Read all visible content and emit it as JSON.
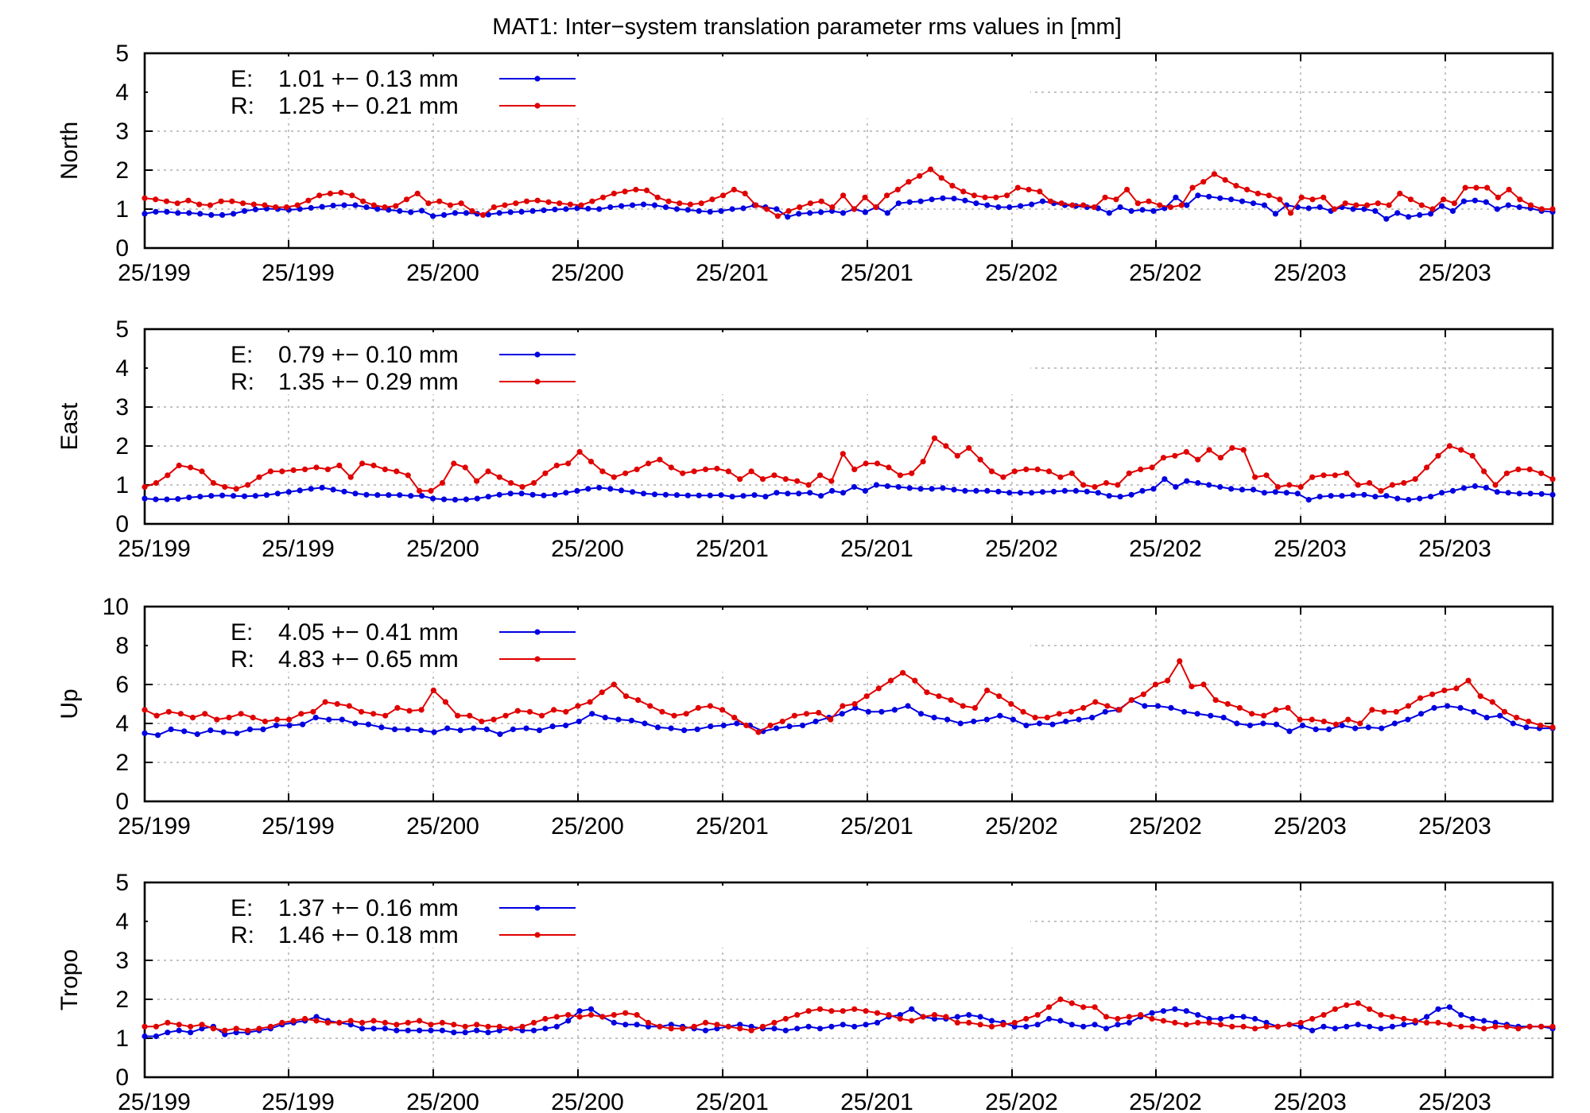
{
  "title": "MAT1: Inter−system translation parameter rms values in [mm]",
  "colors": {
    "E": "#0000e0",
    "R": "#e00000",
    "grid": "#a0a0a0",
    "frame": "#000000"
  },
  "x_tick_labels": [
    "25/199",
    "25/199",
    "25/200",
    "25/200",
    "25/201",
    "25/201",
    "25/202",
    "25/202",
    "25/203",
    "25/203"
  ],
  "chart_data": [
    {
      "type": "line",
      "ylabel": "North",
      "ylim": [
        0,
        5
      ],
      "yticks": [
        "0",
        "1",
        "2",
        "3",
        "4",
        "5"
      ],
      "grid": true,
      "legend_position": "top-left",
      "series": [
        {
          "name": "E",
          "legend": "1.01 +− 0.13 mm",
          "values": [
            0.88,
            0.93,
            0.93,
            0.9,
            0.9,
            0.88,
            0.85,
            0.85,
            0.88,
            0.95,
            0.99,
            1.01,
            1.0,
            0.98,
            1.0,
            1.03,
            1.06,
            1.09,
            1.1,
            1.1,
            1.05,
            1.0,
            0.98,
            0.95,
            0.92,
            0.96,
            0.82,
            0.85,
            0.9,
            0.9,
            0.88,
            0.86,
            0.9,
            0.92,
            0.93,
            0.95,
            0.97,
            0.99,
            1.0,
            1.02,
            1.01,
            1.0,
            1.05,
            1.08,
            1.1,
            1.12,
            1.1,
            1.05,
            1.0,
            0.98,
            0.95,
            0.93,
            0.95,
            1.0,
            1.02,
            1.1,
            1.05,
            1.0,
            0.8,
            0.88,
            0.9,
            0.92,
            0.95,
            0.9,
            1.0,
            0.92,
            1.05,
            0.9,
            1.15,
            1.18,
            1.2,
            1.25,
            1.28,
            1.27,
            1.22,
            1.15,
            1.1,
            1.05,
            1.05,
            1.08,
            1.12,
            1.2,
            1.15,
            1.1,
            1.08,
            1.05,
            1.02,
            0.9,
            1.05,
            0.95,
            0.98,
            0.95,
            1.02,
            1.3,
            1.1,
            1.35,
            1.32,
            1.28,
            1.25,
            1.2,
            1.15,
            1.1,
            0.88,
            1.1,
            1.05,
            1.02,
            1.05,
            0.95,
            1.05,
            1.0,
            1.0,
            0.95,
            0.75,
            0.9,
            0.8,
            0.85,
            0.88,
            1.08,
            0.95,
            1.2,
            1.22,
            1.18,
            1.0,
            1.1,
            1.05,
            1.02,
            0.95,
            0.93
          ]
        },
        {
          "name": "R",
          "legend": "1.25 +− 0.21 mm",
          "values": [
            1.28,
            1.25,
            1.2,
            1.15,
            1.22,
            1.12,
            1.1,
            1.2,
            1.2,
            1.15,
            1.12,
            1.1,
            1.05,
            1.05,
            1.1,
            1.22,
            1.35,
            1.4,
            1.42,
            1.35,
            1.2,
            1.1,
            1.05,
            1.08,
            1.25,
            1.4,
            1.15,
            1.2,
            1.1,
            1.15,
            0.95,
            0.85,
            1.05,
            1.1,
            1.15,
            1.2,
            1.22,
            1.18,
            1.15,
            1.12,
            1.1,
            1.2,
            1.3,
            1.4,
            1.45,
            1.5,
            1.48,
            1.3,
            1.2,
            1.15,
            1.12,
            1.15,
            1.25,
            1.35,
            1.5,
            1.4,
            1.1,
            1.0,
            0.82,
            0.95,
            1.05,
            1.15,
            1.2,
            1.05,
            1.35,
            1.0,
            1.3,
            1.05,
            1.35,
            1.5,
            1.7,
            1.85,
            2.02,
            1.8,
            1.6,
            1.45,
            1.35,
            1.3,
            1.3,
            1.35,
            1.55,
            1.5,
            1.45,
            1.2,
            1.15,
            1.1,
            1.1,
            1.05,
            1.3,
            1.25,
            1.5,
            1.15,
            1.2,
            1.1,
            1.05,
            1.1,
            1.55,
            1.7,
            1.9,
            1.75,
            1.6,
            1.5,
            1.4,
            1.35,
            1.25,
            0.9,
            1.3,
            1.25,
            1.3,
            1.0,
            1.15,
            1.1,
            1.1,
            1.15,
            1.1,
            1.4,
            1.25,
            1.1,
            1.0,
            1.25,
            1.15,
            1.55,
            1.55,
            1.55,
            1.3,
            1.5,
            1.25,
            1.1,
            1.0,
            1.0
          ]
        }
      ]
    },
    {
      "type": "line",
      "ylabel": "East",
      "ylim": [
        0,
        5
      ],
      "yticks": [
        "0",
        "1",
        "2",
        "3",
        "4",
        "5"
      ],
      "grid": true,
      "legend_position": "top-left",
      "series": [
        {
          "name": "E",
          "legend": "0.79 +− 0.10 mm",
          "values": [
            0.65,
            0.63,
            0.63,
            0.64,
            0.68,
            0.7,
            0.72,
            0.73,
            0.72,
            0.71,
            0.72,
            0.74,
            0.78,
            0.82,
            0.86,
            0.9,
            0.93,
            0.88,
            0.83,
            0.78,
            0.75,
            0.74,
            0.74,
            0.74,
            0.72,
            0.72,
            0.65,
            0.63,
            0.62,
            0.63,
            0.65,
            0.7,
            0.75,
            0.78,
            0.78,
            0.75,
            0.73,
            0.75,
            0.8,
            0.85,
            0.9,
            0.93,
            0.9,
            0.86,
            0.82,
            0.78,
            0.76,
            0.75,
            0.74,
            0.73,
            0.73,
            0.73,
            0.74,
            0.7,
            0.72,
            0.74,
            0.7,
            0.8,
            0.78,
            0.78,
            0.8,
            0.72,
            0.85,
            0.8,
            0.95,
            0.85,
            1.0,
            0.97,
            0.95,
            0.92,
            0.9,
            0.9,
            0.92,
            0.88,
            0.85,
            0.85,
            0.85,
            0.83,
            0.8,
            0.8,
            0.8,
            0.82,
            0.83,
            0.85,
            0.85,
            0.83,
            0.8,
            0.72,
            0.7,
            0.75,
            0.85,
            0.9,
            1.15,
            0.95,
            1.1,
            1.05,
            1.0,
            0.95,
            0.9,
            0.88,
            0.88,
            0.8,
            0.82,
            0.8,
            0.78,
            0.62,
            0.7,
            0.72,
            0.72,
            0.74,
            0.75,
            0.7,
            0.72,
            0.65,
            0.62,
            0.65,
            0.7,
            0.8,
            0.85,
            0.92,
            0.97,
            0.93,
            0.82,
            0.8,
            0.78,
            0.78,
            0.77,
            0.75
          ]
        },
        {
          "name": "R",
          "legend": "1.35 +− 0.29 mm",
          "values": [
            0.95,
            1.05,
            1.25,
            1.5,
            1.45,
            1.35,
            1.05,
            0.95,
            0.9,
            1.0,
            1.2,
            1.35,
            1.35,
            1.38,
            1.4,
            1.45,
            1.4,
            1.5,
            1.2,
            1.55,
            1.5,
            1.4,
            1.35,
            1.25,
            0.85,
            0.85,
            1.05,
            1.55,
            1.45,
            1.1,
            1.35,
            1.2,
            1.05,
            0.95,
            1.05,
            1.3,
            1.5,
            1.55,
            1.85,
            1.6,
            1.35,
            1.2,
            1.3,
            1.4,
            1.55,
            1.65,
            1.45,
            1.3,
            1.35,
            1.4,
            1.42,
            1.35,
            1.15,
            1.35,
            1.15,
            1.25,
            1.15,
            1.1,
            1.0,
            1.25,
            1.1,
            1.8,
            1.4,
            1.55,
            1.55,
            1.45,
            1.25,
            1.3,
            1.6,
            2.2,
            2.0,
            1.75,
            1.95,
            1.65,
            1.35,
            1.2,
            1.35,
            1.4,
            1.4,
            1.35,
            1.2,
            1.3,
            1.0,
            0.95,
            1.05,
            1.0,
            1.3,
            1.4,
            1.45,
            1.7,
            1.75,
            1.85,
            1.65,
            1.9,
            1.7,
            1.95,
            1.9,
            1.2,
            1.25,
            0.95,
            1.0,
            0.95,
            1.2,
            1.25,
            1.25,
            1.3,
            1.0,
            1.05,
            0.85,
            1.0,
            1.05,
            1.15,
            1.45,
            1.75,
            2.0,
            1.9,
            1.75,
            1.35,
            1.0,
            1.3,
            1.4,
            1.4,
            1.3,
            1.15
          ]
        }
      ]
    },
    {
      "type": "line",
      "ylabel": "Up",
      "ylim": [
        0,
        10
      ],
      "yticks": [
        "0",
        "2",
        "4",
        "6",
        "8",
        "10"
      ],
      "grid": true,
      "legend_position": "top-left",
      "series": [
        {
          "name": "E",
          "legend": "4.05 +− 0.41 mm",
          "values": [
            3.5,
            3.4,
            3.7,
            3.6,
            3.45,
            3.65,
            3.55,
            3.5,
            3.7,
            3.7,
            3.9,
            3.9,
            3.95,
            4.3,
            4.2,
            4.2,
            4.0,
            3.95,
            3.8,
            3.7,
            3.7,
            3.65,
            3.55,
            3.75,
            3.65,
            3.75,
            3.7,
            3.45,
            3.7,
            3.75,
            3.65,
            3.85,
            3.9,
            4.1,
            4.5,
            4.3,
            4.2,
            4.15,
            4.0,
            3.8,
            3.75,
            3.65,
            3.7,
            3.85,
            3.9,
            4.0,
            3.9,
            3.6,
            3.75,
            3.85,
            3.9,
            4.1,
            4.3,
            4.5,
            4.8,
            4.6,
            4.6,
            4.7,
            4.9,
            4.5,
            4.3,
            4.2,
            4.0,
            4.1,
            4.2,
            4.4,
            4.2,
            3.9,
            4.0,
            3.95,
            4.1,
            4.2,
            4.3,
            4.6,
            4.7,
            5.2,
            4.9,
            4.9,
            4.8,
            4.6,
            4.5,
            4.4,
            4.3,
            4.0,
            3.9,
            4.0,
            3.95,
            3.6,
            3.9,
            3.7,
            3.7,
            3.9,
            3.75,
            3.8,
            3.75,
            4.0,
            4.2,
            4.5,
            4.8,
            4.9,
            4.8,
            4.6,
            4.3,
            4.4,
            4.0,
            3.8,
            3.75,
            3.75
          ]
        },
        {
          "name": "R",
          "legend": "4.83 +− 0.65 mm",
          "values": [
            4.7,
            4.4,
            4.6,
            4.5,
            4.3,
            4.5,
            4.2,
            4.3,
            4.5,
            4.3,
            4.1,
            4.2,
            4.2,
            4.5,
            4.6,
            5.1,
            5.0,
            4.9,
            4.6,
            4.5,
            4.4,
            4.8,
            4.65,
            4.7,
            5.7,
            5.1,
            4.4,
            4.4,
            4.1,
            4.2,
            4.4,
            4.65,
            4.6,
            4.4,
            4.7,
            4.6,
            4.9,
            5.1,
            5.6,
            6.0,
            5.4,
            5.2,
            4.9,
            4.6,
            4.4,
            4.5,
            4.8,
            4.9,
            4.7,
            4.3,
            3.9,
            3.55,
            3.9,
            4.1,
            4.4,
            4.5,
            4.55,
            4.2,
            4.9,
            5.0,
            5.4,
            5.8,
            6.2,
            6.6,
            6.2,
            5.6,
            5.4,
            5.2,
            4.9,
            4.8,
            5.7,
            5.4,
            5.0,
            4.6,
            4.3,
            4.3,
            4.5,
            4.6,
            4.8,
            5.1,
            4.9,
            4.7,
            5.2,
            5.5,
            6.0,
            6.2,
            7.2,
            5.9,
            6.0,
            5.2,
            5.0,
            4.8,
            4.5,
            4.4,
            4.7,
            4.8,
            4.2,
            4.2,
            4.1,
            3.95,
            4.2,
            4.0,
            4.7,
            4.6,
            4.6,
            4.9,
            5.3,
            5.5,
            5.7,
            5.8,
            6.2,
            5.4,
            5.1,
            4.6,
            4.3,
            4.1,
            3.9,
            3.8
          ]
        }
      ]
    },
    {
      "type": "line",
      "ylabel": "Tropo",
      "ylim": [
        0,
        5
      ],
      "yticks": [
        "0",
        "1",
        "2",
        "3",
        "4",
        "5"
      ],
      "grid": true,
      "legend_position": "top-left",
      "series": [
        {
          "name": "E",
          "legend": "1.37 +− 0.16 mm",
          "values": [
            1.05,
            1.05,
            1.15,
            1.2,
            1.15,
            1.25,
            1.3,
            1.1,
            1.15,
            1.15,
            1.2,
            1.25,
            1.35,
            1.4,
            1.45,
            1.55,
            1.45,
            1.4,
            1.35,
            1.25,
            1.25,
            1.25,
            1.2,
            1.2,
            1.2,
            1.2,
            1.2,
            1.15,
            1.15,
            1.2,
            1.15,
            1.2,
            1.25,
            1.2,
            1.2,
            1.25,
            1.3,
            1.45,
            1.7,
            1.75,
            1.55,
            1.4,
            1.35,
            1.35,
            1.3,
            1.3,
            1.35,
            1.3,
            1.25,
            1.2,
            1.25,
            1.3,
            1.35,
            1.3,
            1.25,
            1.25,
            1.2,
            1.25,
            1.3,
            1.25,
            1.3,
            1.35,
            1.3,
            1.35,
            1.4,
            1.55,
            1.6,
            1.75,
            1.55,
            1.5,
            1.5,
            1.55,
            1.6,
            1.55,
            1.45,
            1.4,
            1.3,
            1.3,
            1.35,
            1.5,
            1.45,
            1.35,
            1.3,
            1.35,
            1.25,
            1.35,
            1.4,
            1.55,
            1.65,
            1.7,
            1.75,
            1.7,
            1.6,
            1.5,
            1.5,
            1.55,
            1.55,
            1.5,
            1.4,
            1.3,
            1.35,
            1.3,
            1.2,
            1.3,
            1.25,
            1.3,
            1.35,
            1.3,
            1.25,
            1.3,
            1.35,
            1.4,
            1.55,
            1.75,
            1.8,
            1.6,
            1.5,
            1.45,
            1.4,
            1.35,
            1.3,
            1.3,
            1.3,
            1.25
          ]
        },
        {
          "name": "R",
          "legend": "1.46 +− 0.18 mm",
          "values": [
            1.3,
            1.3,
            1.4,
            1.35,
            1.3,
            1.35,
            1.25,
            1.2,
            1.25,
            1.2,
            1.25,
            1.3,
            1.4,
            1.45,
            1.5,
            1.45,
            1.4,
            1.4,
            1.45,
            1.4,
            1.45,
            1.4,
            1.35,
            1.4,
            1.45,
            1.35,
            1.4,
            1.35,
            1.3,
            1.35,
            1.3,
            1.3,
            1.25,
            1.3,
            1.4,
            1.5,
            1.55,
            1.6,
            1.55,
            1.6,
            1.55,
            1.6,
            1.65,
            1.6,
            1.4,
            1.3,
            1.25,
            1.25,
            1.3,
            1.4,
            1.35,
            1.3,
            1.25,
            1.2,
            1.3,
            1.4,
            1.5,
            1.6,
            1.7,
            1.75,
            1.7,
            1.7,
            1.75,
            1.7,
            1.65,
            1.6,
            1.5,
            1.45,
            1.55,
            1.6,
            1.55,
            1.4,
            1.4,
            1.35,
            1.3,
            1.35,
            1.4,
            1.5,
            1.6,
            1.8,
            2.0,
            1.9,
            1.8,
            1.8,
            1.55,
            1.5,
            1.55,
            1.6,
            1.5,
            1.45,
            1.4,
            1.35,
            1.4,
            1.4,
            1.35,
            1.3,
            1.3,
            1.25,
            1.3,
            1.3,
            1.35,
            1.4,
            1.5,
            1.6,
            1.75,
            1.85,
            1.9,
            1.75,
            1.6,
            1.55,
            1.5,
            1.45,
            1.4,
            1.4,
            1.35,
            1.3,
            1.3,
            1.25,
            1.3,
            1.3,
            1.25,
            1.3,
            1.3,
            1.3
          ]
        }
      ]
    }
  ]
}
